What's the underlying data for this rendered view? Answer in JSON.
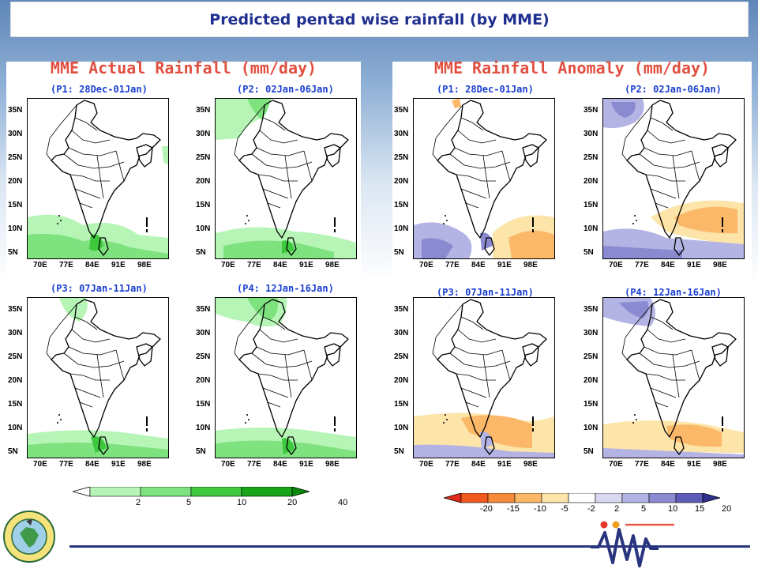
{
  "title": "Predicted pentad wise rainfall (by MME)",
  "left_panel": {
    "title": "MME Actual Rainfall (mm/day)",
    "maps": [
      {
        "label": "(P1: 28Dec-01Jan)"
      },
      {
        "label": "(P2: 02Jan-06Jan)"
      },
      {
        "label": "(P3: 07Jan-11Jan)"
      },
      {
        "label": "(P4: 12Jan-16Jan)"
      }
    ],
    "colorbar": {
      "labels": [
        "2",
        "5",
        "10",
        "20",
        "40"
      ],
      "colors": [
        "#ffffff",
        "#b6f5b6",
        "#7ee27e",
        "#3ec83e",
        "#17a417",
        "#078a07"
      ]
    }
  },
  "right_panel": {
    "title": "MME Rainfall Anomaly (mm/day)",
    "maps": [
      {
        "label": "(P1: 28Dec-01Jan)"
      },
      {
        "label": "(P2: 02Jan-06Jan)"
      },
      {
        "label": "(P3: 07Jan-11Jan)"
      },
      {
        "label": "(P4: 12Jan-16Jan)"
      }
    ],
    "colorbar": {
      "labels": [
        "-20",
        "-15",
        "-10",
        "-5",
        "-2",
        "2",
        "5",
        "10",
        "15",
        "20"
      ],
      "colors": [
        "#e02a1a",
        "#f05a1e",
        "#f68a3a",
        "#fab868",
        "#fde4a8",
        "#ffffff",
        "#d8d8f0",
        "#b4b4e4",
        "#8a8ad0",
        "#5c5cb8",
        "#303090"
      ]
    }
  },
  "axes": {
    "y_ticks": [
      "35N",
      "30N",
      "25N",
      "20N",
      "15N",
      "10N",
      "5N"
    ],
    "x_ticks": [
      "70E",
      "77E",
      "84E",
      "91E",
      "98E"
    ]
  }
}
